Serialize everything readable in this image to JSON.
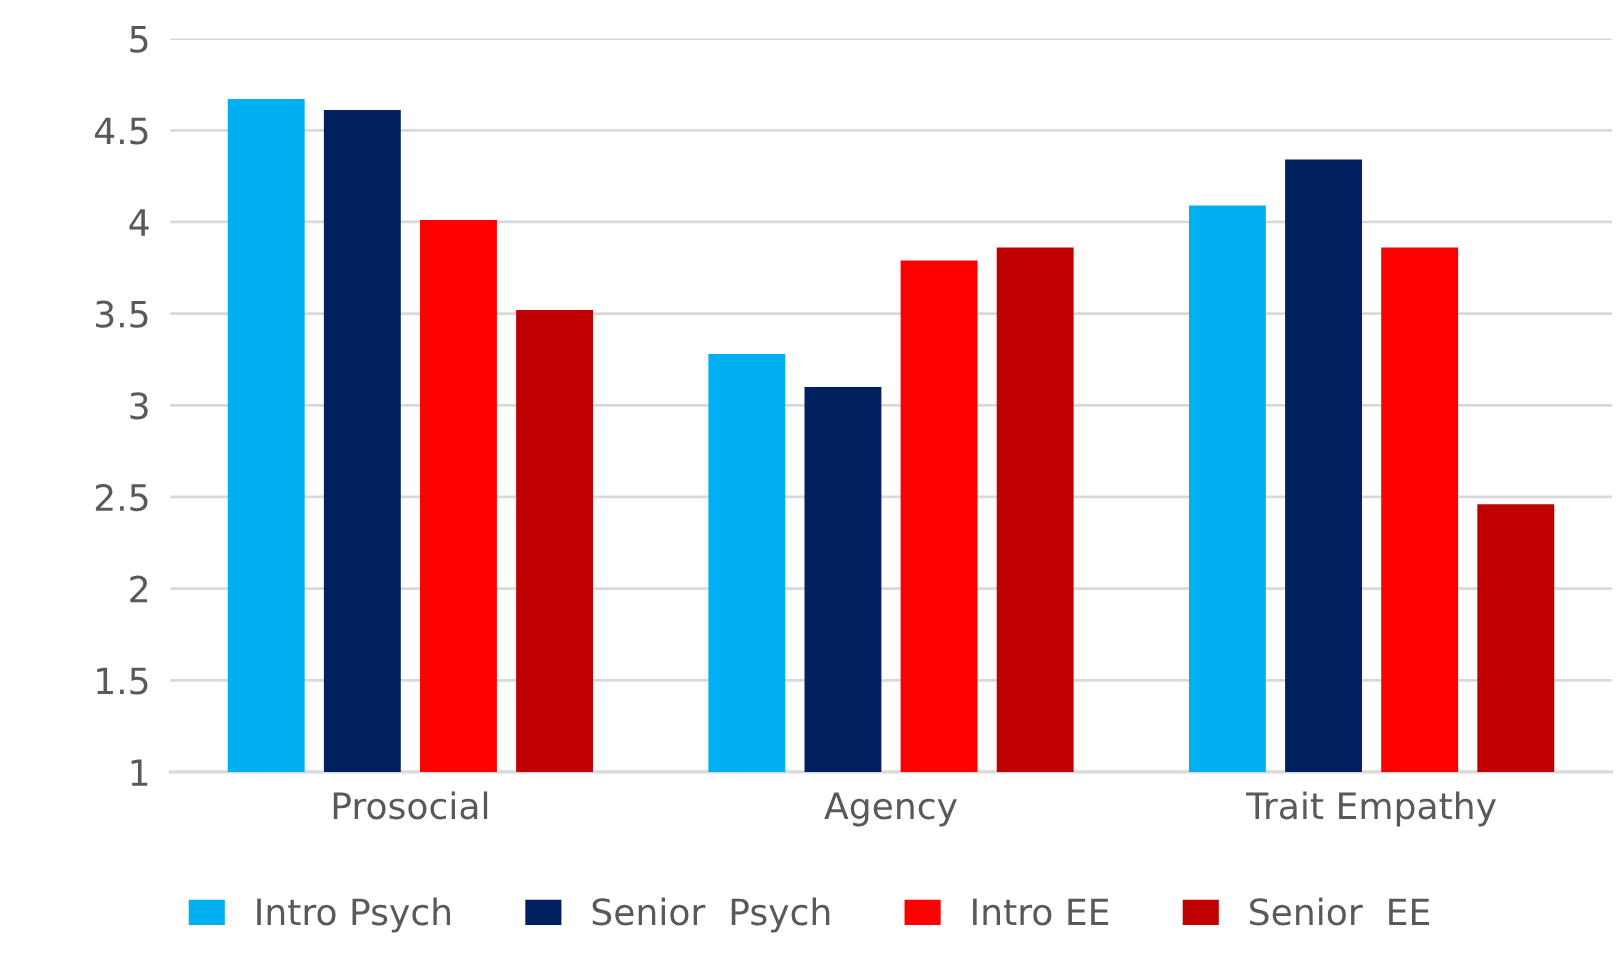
{
  "chart_data": {
    "type": "bar",
    "categories": [
      "Prosocial",
      "Agency",
      "Trait Empathy"
    ],
    "series": [
      {
        "name": "Intro Psych",
        "color": "#00b0f0",
        "values": [
          4.67,
          3.28,
          4.09
        ]
      },
      {
        "name": "Senior  Psych",
        "color": "#002060",
        "values": [
          4.61,
          3.1,
          4.34
        ]
      },
      {
        "name": "Intro EE",
        "color": "#ff0000",
        "values": [
          4.01,
          3.79,
          3.86
        ]
      },
      {
        "name": "Senior  EE",
        "color": "#c00000",
        "values": [
          3.52,
          3.86,
          2.46
        ]
      }
    ],
    "ylim": [
      1,
      5
    ],
    "yticks": [
      1,
      1.5,
      2,
      2.5,
      3,
      3.5,
      4,
      4.5,
      5
    ],
    "grid": "y",
    "legend": "bottom"
  }
}
